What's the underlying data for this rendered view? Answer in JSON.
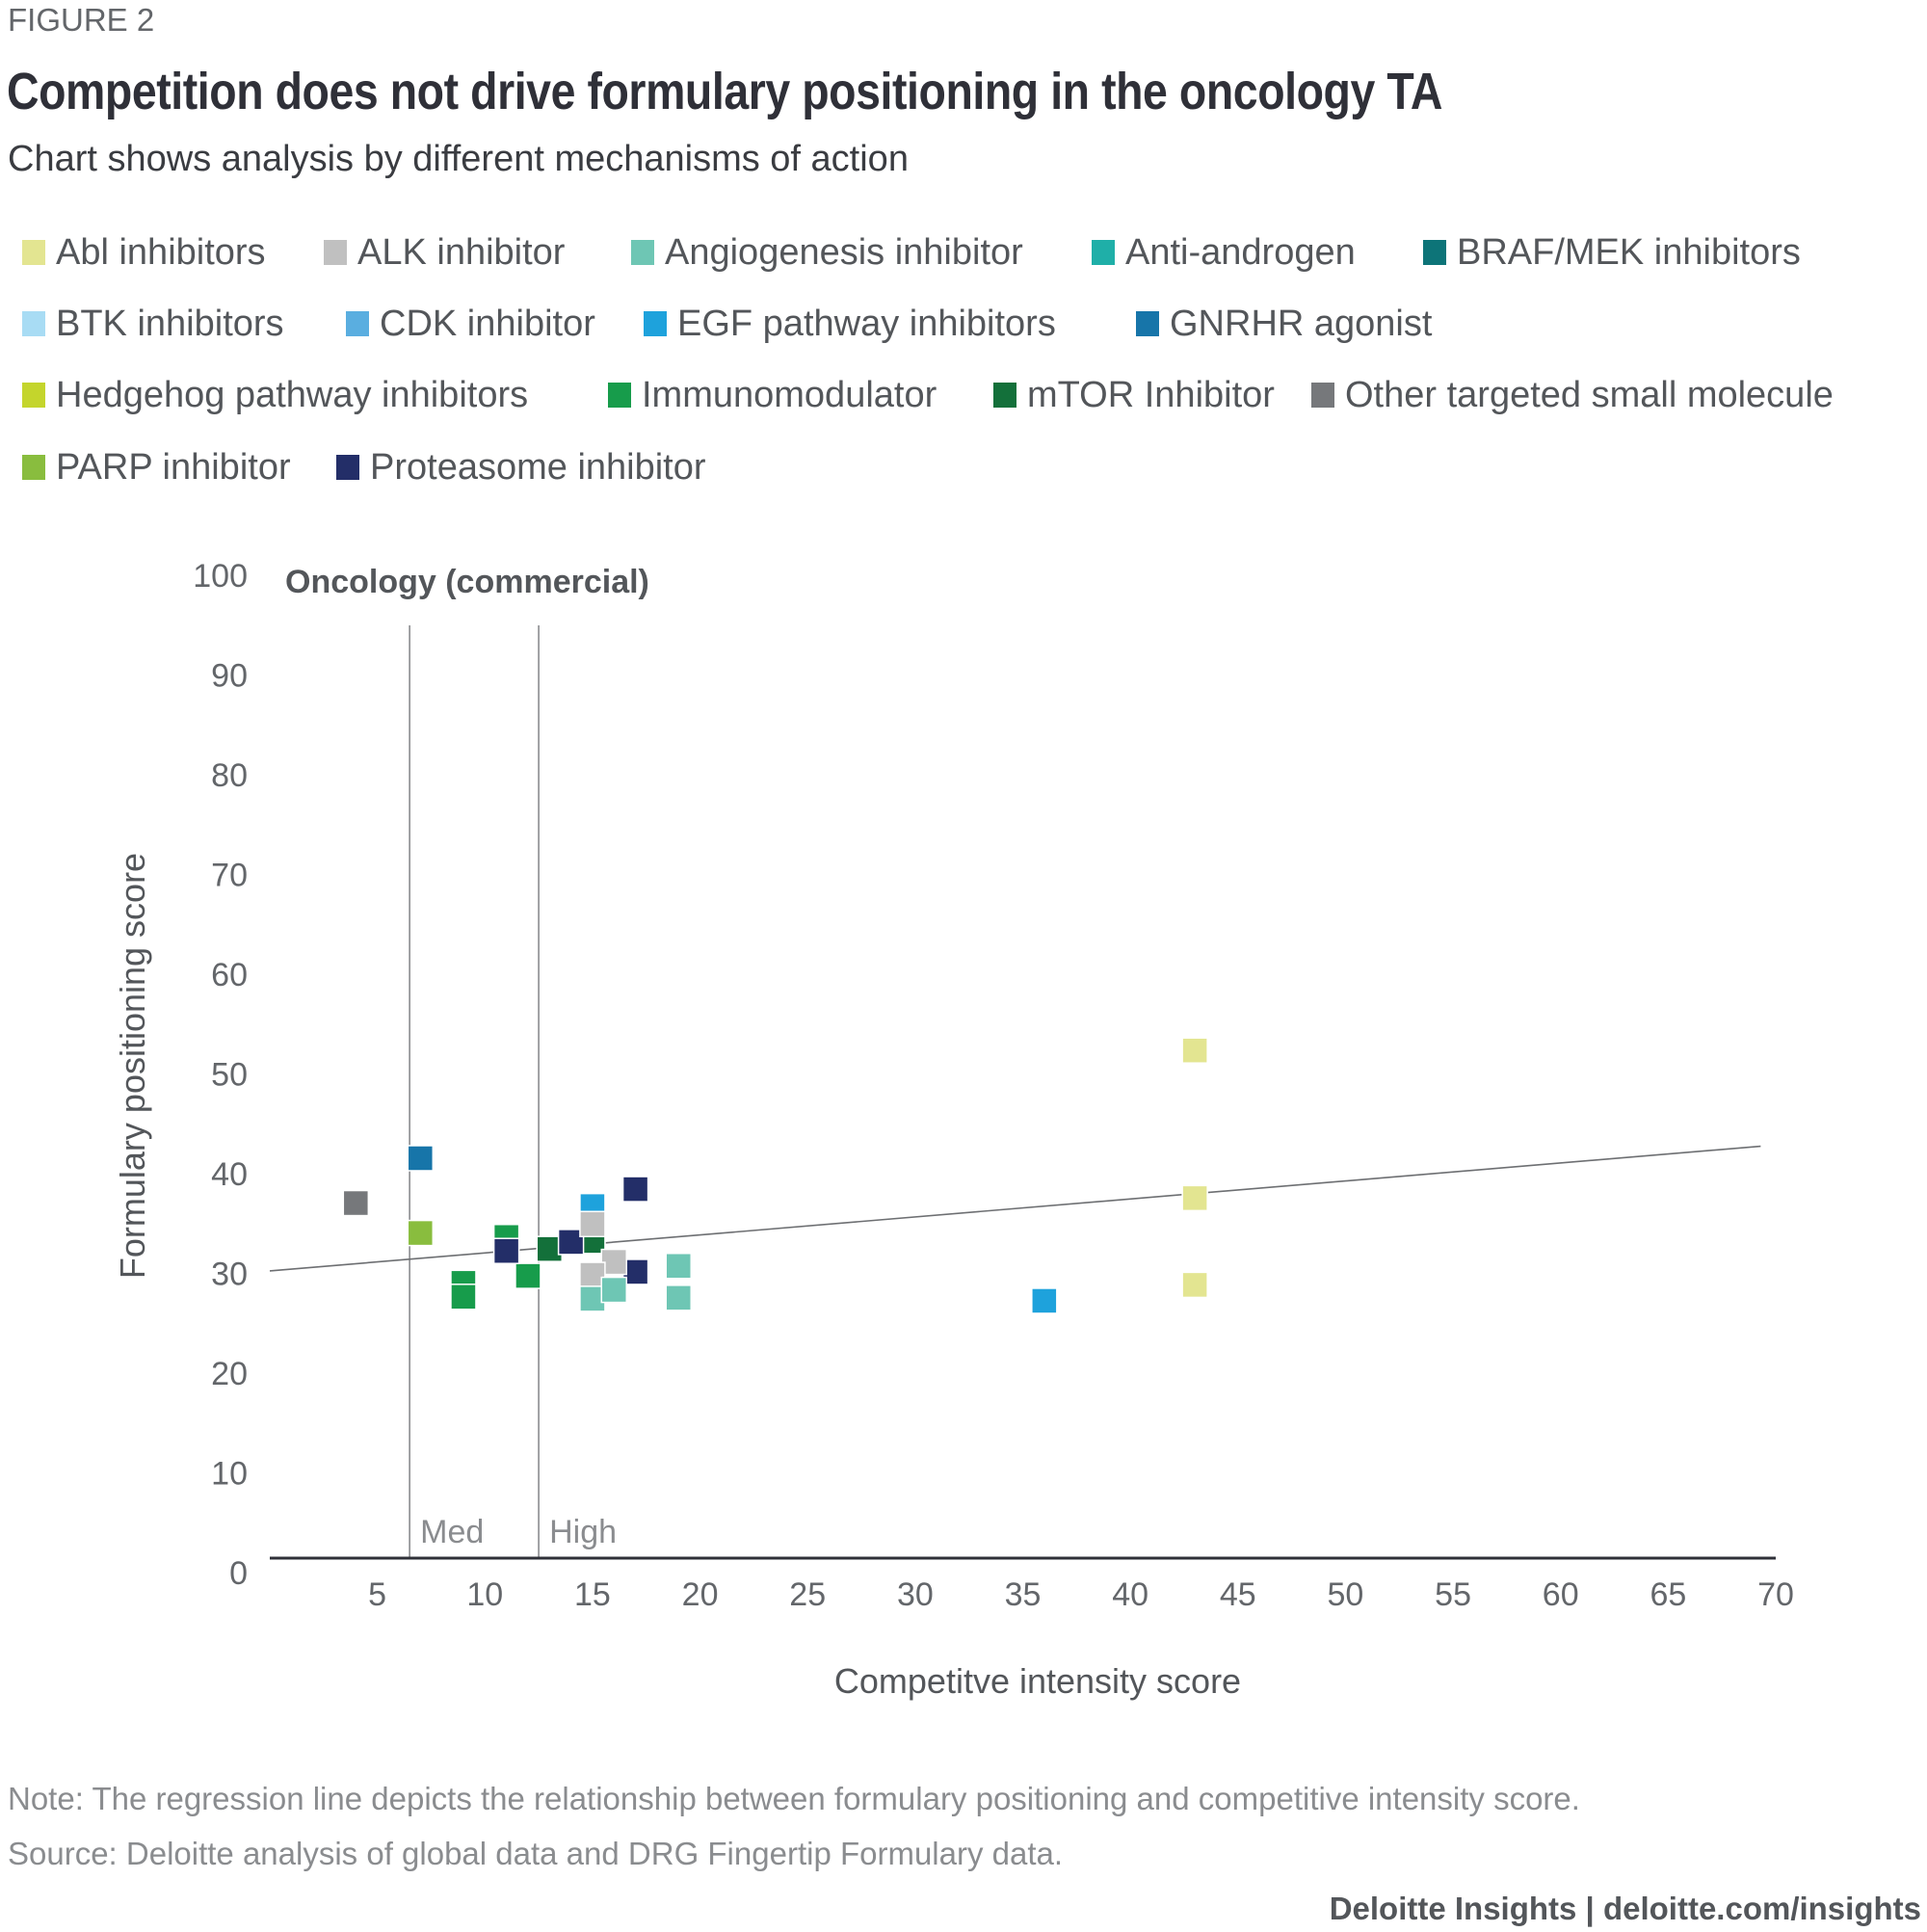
{
  "header": {
    "figure_label": "FIGURE 2",
    "title": "Competition does not drive formulary positioning in the oncology TA",
    "subtitle": "Chart shows analysis by different mechanisms of action"
  },
  "legend": [
    {
      "label": "Abl inhibitors",
      "color": "#e3e591"
    },
    {
      "label": "ALK  inhibitor",
      "color": "#c0c0c0"
    },
    {
      "label": "Angiogenesis inhibitor",
      "color": "#6ec6b4"
    },
    {
      "label": "Anti-androgen",
      "color": "#1fafa8"
    },
    {
      "label": "BRAF/MEK inhibitors",
      "color": "#0d7478"
    },
    {
      "label": "BTK inhibitors",
      "color": "#a8dcf4"
    },
    {
      "label": "CDK inhibitor",
      "color": "#5aaee0"
    },
    {
      "label": "EGF pathway inhibitors",
      "color": "#1ea2dc"
    },
    {
      "label": "GNRHR agonist",
      "color": "#1775a9"
    },
    {
      "label": "Hedgehog pathway inhibitors",
      "color": "#c4d52c"
    },
    {
      "label": "Immunomodulator",
      "color": "#179c4b"
    },
    {
      "label": "mTOR Inhibitor",
      "color": "#13703a"
    },
    {
      "label": "Other targeted small molecule",
      "color": "#76787b"
    },
    {
      "label": "PARP inhibitor",
      "color": "#89bd3e"
    },
    {
      "label": "Proteasome inhibitor",
      "color": "#232e68"
    }
  ],
  "chart_data": {
    "type": "scatter",
    "panel_title": "Oncology (commercial)",
    "xlabel": "Competitve intensity score",
    "ylabel": "Formulary positioning score",
    "xlim": [
      0,
      70
    ],
    "ylim": [
      0,
      100
    ],
    "x_ticks": [
      5,
      10,
      15,
      20,
      25,
      30,
      35,
      40,
      45,
      50,
      55,
      60,
      65,
      70
    ],
    "y_ticks": [
      0,
      10,
      20,
      30,
      40,
      50,
      60,
      70,
      80,
      90,
      100
    ],
    "grid": false,
    "legend_position": "top",
    "reference_lines": [
      {
        "label": "Med",
        "x": 6.5
      },
      {
        "label": "High",
        "x": 12.5
      }
    ],
    "regression_line": {
      "x": [
        0,
        69.3
      ],
      "y": [
        28.8,
        41.3
      ]
    },
    "series": [
      {
        "name": "Other targeted small molecule",
        "points": [
          [
            4.0,
            35.6
          ]
        ]
      },
      {
        "name": "GNRHR agonist",
        "points": [
          [
            7.0,
            40.1
          ]
        ]
      },
      {
        "name": "PARP inhibitor",
        "points": [
          [
            7.0,
            32.6
          ]
        ]
      },
      {
        "name": "Immunomodulator",
        "points": [
          [
            9.0,
            27.6
          ],
          [
            9.0,
            26.2
          ],
          [
            11.0,
            32.2
          ],
          [
            12.0,
            28.3
          ],
          [
            15.0,
            32.0
          ]
        ]
      },
      {
        "name": "mTOR Inhibitor",
        "points": [
          [
            13.0,
            31.0
          ],
          [
            15.0,
            31.8
          ]
        ]
      },
      {
        "name": "Proteasome inhibitor",
        "points": [
          [
            11.0,
            30.8
          ],
          [
            14.0,
            31.7
          ],
          [
            17.0,
            37.0
          ],
          [
            17.0,
            28.7
          ]
        ]
      },
      {
        "name": "EGF pathway inhibitors",
        "points": [
          [
            15.0,
            35.3
          ],
          [
            36.0,
            25.8
          ]
        ]
      },
      {
        "name": "ALK  inhibitor",
        "points": [
          [
            15.0,
            33.5
          ],
          [
            16.0,
            29.7
          ],
          [
            15.0,
            28.4
          ]
        ]
      },
      {
        "name": "Angiogenesis inhibitor",
        "points": [
          [
            15.0,
            26.0
          ],
          [
            16.0,
            26.9
          ],
          [
            19.0,
            29.3
          ],
          [
            19.0,
            26.1
          ]
        ]
      },
      {
        "name": "Abl inhibitors",
        "points": [
          [
            43.0,
            50.9
          ],
          [
            43.0,
            36.1
          ],
          [
            43.0,
            27.4
          ]
        ]
      }
    ]
  },
  "footer": {
    "note": "Note: The regression line depicts the relationship between formulary positioning and competitive intensity score.",
    "source": "Source: Deloitte analysis of global data and DRG Fingertip Formulary data.",
    "brand": "Deloitte Insights | deloitte.com/insights"
  }
}
